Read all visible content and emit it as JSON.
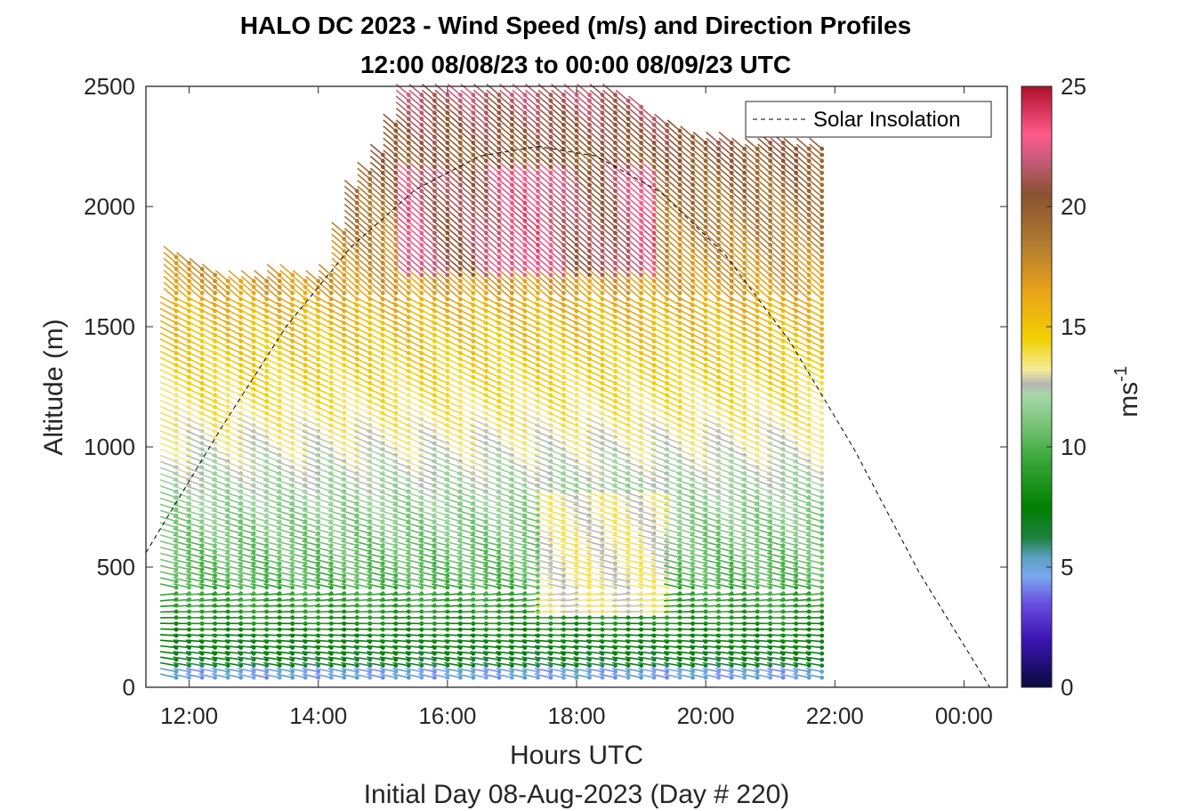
{
  "chart_data": {
    "type": "wind-barb-profile",
    "title_line1": "HALO DC 2023 - Wind Speed (m/s) and Direction Profiles",
    "title_line2": "12:00 08/08/23 to 00:00 08/09/23  UTC",
    "xlabel": "Hours UTC",
    "xlabel2": "Initial Day 08-Aug-2023 (Day # 220)",
    "ylabel": "Altitude (m)",
    "xlim_hours": [
      11.33,
      24.67
    ],
    "ylim": [
      0,
      2500
    ],
    "x_ticks": [
      {
        "hour": 12,
        "label": "12:00"
      },
      {
        "hour": 14,
        "label": "14:00"
      },
      {
        "hour": 16,
        "label": "16:00"
      },
      {
        "hour": 18,
        "label": "18:00"
      },
      {
        "hour": 20,
        "label": "20:00"
      },
      {
        "hour": 22,
        "label": "22:00"
      },
      {
        "hour": 24,
        "label": "00:00"
      }
    ],
    "y_ticks": [
      0,
      500,
      1000,
      1500,
      2000,
      2500
    ],
    "colorbar": {
      "label": "ms",
      "label_exp": "-1",
      "range": [
        0,
        25
      ],
      "ticks": [
        0,
        5,
        10,
        15,
        20,
        25
      ],
      "stops": [
        {
          "v": 0,
          "c": "#0a0a3c"
        },
        {
          "v": 2,
          "c": "#3c14b4"
        },
        {
          "v": 3.5,
          "c": "#6a4fe0"
        },
        {
          "v": 4.6,
          "c": "#7aa7f0"
        },
        {
          "v": 5.4,
          "c": "#5aa0c0"
        },
        {
          "v": 6.2,
          "c": "#1f8040"
        },
        {
          "v": 7.5,
          "c": "#008000"
        },
        {
          "v": 9.5,
          "c": "#3aa83a"
        },
        {
          "v": 11,
          "c": "#7cc47c"
        },
        {
          "v": 12.2,
          "c": "#a8d8a8"
        },
        {
          "v": 12.6,
          "c": "#b4b4b4"
        },
        {
          "v": 13.2,
          "c": "#f3ec9a"
        },
        {
          "v": 14.5,
          "c": "#f2d000"
        },
        {
          "v": 16.5,
          "c": "#e8a21a"
        },
        {
          "v": 18.5,
          "c": "#b07a30"
        },
        {
          "v": 20.5,
          "c": "#8a5230"
        },
        {
          "v": 22,
          "c": "#c85c7c"
        },
        {
          "v": 23,
          "c": "#ff5a8c"
        },
        {
          "v": 25,
          "c": "#b0102a"
        }
      ]
    },
    "legend": {
      "label": "Solar Insolation",
      "location": "top-right"
    },
    "solar_insolation": {
      "peak_hour": 17.4,
      "peak_altitude": 2250,
      "points": [
        {
          "hour": 11.33,
          "alt": 560
        },
        {
          "hour": 12.5,
          "alt": 1080
        },
        {
          "hour": 13.5,
          "alt": 1500
        },
        {
          "hour": 14.5,
          "alt": 1830
        },
        {
          "hour": 15.5,
          "alt": 2070
        },
        {
          "hour": 16.5,
          "alt": 2210
        },
        {
          "hour": 17.4,
          "alt": 2250
        },
        {
          "hour": 18.3,
          "alt": 2210
        },
        {
          "hour": 19.3,
          "alt": 2060
        },
        {
          "hour": 20.3,
          "alt": 1800
        },
        {
          "hour": 21.3,
          "alt": 1440
        },
        {
          "hour": 22.3,
          "alt": 990
        },
        {
          "hour": 23.3,
          "alt": 480
        },
        {
          "hour": 24.4,
          "alt": 0
        },
        {
          "hour": 24.67,
          "alt": 0
        }
      ]
    },
    "barbs": {
      "columns_start_hour": 11.8,
      "columns_end_hour": 21.8,
      "column_step_hours": 0.2,
      "altitude_step_m": 25,
      "min_altitude_m": 40,
      "direction_note": "tails point toward upper-left at low levels and lower-right near the bottom",
      "regions": [
        {
          "name": "surface",
          "alt_range": [
            40,
            80
          ],
          "speed": 4.8
        },
        {
          "name": "low-level jet",
          "alt_range": [
            80,
            450
          ],
          "speed": 8
        },
        {
          "name": "transition",
          "alt_range": [
            450,
            1100
          ],
          "speed": 11
        },
        {
          "name": "mid-level",
          "alt_range": [
            1100,
            1600
          ],
          "speed": 14.5
        },
        {
          "name": "upper",
          "alt_range": [
            1600,
            2000
          ],
          "speed": 18.5
        },
        {
          "name": "upper core",
          "hours": [
            15.2,
            19.3
          ],
          "alt_range": [
            1700,
            2150
          ],
          "speed": 22.5
        }
      ],
      "top_altitude_by_hour": [
        {
          "hour": 11.8,
          "alt": 1790
        },
        {
          "hour": 12.2,
          "alt": 1750
        },
        {
          "hour": 12.6,
          "alt": 1690
        },
        {
          "hour": 13.0,
          "alt": 1700
        },
        {
          "hour": 13.4,
          "alt": 1730
        },
        {
          "hour": 13.8,
          "alt": 1700
        },
        {
          "hour": 14.2,
          "alt": 1720
        },
        {
          "hour": 14.6,
          "alt": 2080
        },
        {
          "hour": 15.0,
          "alt": 2230
        },
        {
          "hour": 15.4,
          "alt": 2480
        },
        {
          "hour": 15.8,
          "alt": 2480
        },
        {
          "hour": 16.2,
          "alt": 2480
        },
        {
          "hour": 16.6,
          "alt": 2480
        },
        {
          "hour": 17.0,
          "alt": 2480
        },
        {
          "hour": 17.4,
          "alt": 2480
        },
        {
          "hour": 17.8,
          "alt": 2480
        },
        {
          "hour": 18.2,
          "alt": 2480
        },
        {
          "hour": 18.6,
          "alt": 2480
        },
        {
          "hour": 19.0,
          "alt": 2420
        },
        {
          "hour": 19.4,
          "alt": 2350
        },
        {
          "hour": 19.8,
          "alt": 2300
        },
        {
          "hour": 20.2,
          "alt": 2270
        },
        {
          "hour": 20.6,
          "alt": 2260
        },
        {
          "hour": 21.0,
          "alt": 2270
        },
        {
          "hour": 21.4,
          "alt": 2260
        },
        {
          "hour": 21.8,
          "alt": 2260
        }
      ]
    }
  }
}
